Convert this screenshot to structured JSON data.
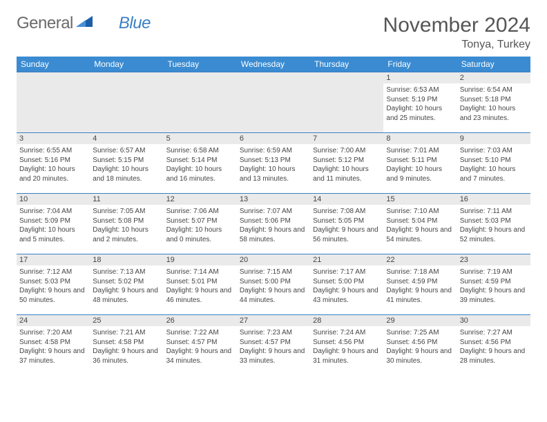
{
  "logo": {
    "text1": "General",
    "text2": "Blue"
  },
  "title": "November 2024",
  "location": "Tonya, Turkey",
  "colors": {
    "header_bg": "#3a8bd1",
    "header_text": "#ffffff",
    "border": "#3a7fc4",
    "daynum_bg": "#eaeaea",
    "text": "#444444",
    "logo_gray": "#6a6a6a",
    "logo_blue": "#3a7fc4"
  },
  "columns": [
    "Sunday",
    "Monday",
    "Tuesday",
    "Wednesday",
    "Thursday",
    "Friday",
    "Saturday"
  ],
  "weeks": [
    [
      null,
      null,
      null,
      null,
      null,
      {
        "n": "1",
        "sunrise": "6:53 AM",
        "sunset": "5:19 PM",
        "daylight": "10 hours and 25 minutes."
      },
      {
        "n": "2",
        "sunrise": "6:54 AM",
        "sunset": "5:18 PM",
        "daylight": "10 hours and 23 minutes."
      }
    ],
    [
      {
        "n": "3",
        "sunrise": "6:55 AM",
        "sunset": "5:16 PM",
        "daylight": "10 hours and 20 minutes."
      },
      {
        "n": "4",
        "sunrise": "6:57 AM",
        "sunset": "5:15 PM",
        "daylight": "10 hours and 18 minutes."
      },
      {
        "n": "5",
        "sunrise": "6:58 AM",
        "sunset": "5:14 PM",
        "daylight": "10 hours and 16 minutes."
      },
      {
        "n": "6",
        "sunrise": "6:59 AM",
        "sunset": "5:13 PM",
        "daylight": "10 hours and 13 minutes."
      },
      {
        "n": "7",
        "sunrise": "7:00 AM",
        "sunset": "5:12 PM",
        "daylight": "10 hours and 11 minutes."
      },
      {
        "n": "8",
        "sunrise": "7:01 AM",
        "sunset": "5:11 PM",
        "daylight": "10 hours and 9 minutes."
      },
      {
        "n": "9",
        "sunrise": "7:03 AM",
        "sunset": "5:10 PM",
        "daylight": "10 hours and 7 minutes."
      }
    ],
    [
      {
        "n": "10",
        "sunrise": "7:04 AM",
        "sunset": "5:09 PM",
        "daylight": "10 hours and 5 minutes."
      },
      {
        "n": "11",
        "sunrise": "7:05 AM",
        "sunset": "5:08 PM",
        "daylight": "10 hours and 2 minutes."
      },
      {
        "n": "12",
        "sunrise": "7:06 AM",
        "sunset": "5:07 PM",
        "daylight": "10 hours and 0 minutes."
      },
      {
        "n": "13",
        "sunrise": "7:07 AM",
        "sunset": "5:06 PM",
        "daylight": "9 hours and 58 minutes."
      },
      {
        "n": "14",
        "sunrise": "7:08 AM",
        "sunset": "5:05 PM",
        "daylight": "9 hours and 56 minutes."
      },
      {
        "n": "15",
        "sunrise": "7:10 AM",
        "sunset": "5:04 PM",
        "daylight": "9 hours and 54 minutes."
      },
      {
        "n": "16",
        "sunrise": "7:11 AM",
        "sunset": "5:03 PM",
        "daylight": "9 hours and 52 minutes."
      }
    ],
    [
      {
        "n": "17",
        "sunrise": "7:12 AM",
        "sunset": "5:03 PM",
        "daylight": "9 hours and 50 minutes."
      },
      {
        "n": "18",
        "sunrise": "7:13 AM",
        "sunset": "5:02 PM",
        "daylight": "9 hours and 48 minutes."
      },
      {
        "n": "19",
        "sunrise": "7:14 AM",
        "sunset": "5:01 PM",
        "daylight": "9 hours and 46 minutes."
      },
      {
        "n": "20",
        "sunrise": "7:15 AM",
        "sunset": "5:00 PM",
        "daylight": "9 hours and 44 minutes."
      },
      {
        "n": "21",
        "sunrise": "7:17 AM",
        "sunset": "5:00 PM",
        "daylight": "9 hours and 43 minutes."
      },
      {
        "n": "22",
        "sunrise": "7:18 AM",
        "sunset": "4:59 PM",
        "daylight": "9 hours and 41 minutes."
      },
      {
        "n": "23",
        "sunrise": "7:19 AM",
        "sunset": "4:59 PM",
        "daylight": "9 hours and 39 minutes."
      }
    ],
    [
      {
        "n": "24",
        "sunrise": "7:20 AM",
        "sunset": "4:58 PM",
        "daylight": "9 hours and 37 minutes."
      },
      {
        "n": "25",
        "sunrise": "7:21 AM",
        "sunset": "4:58 PM",
        "daylight": "9 hours and 36 minutes."
      },
      {
        "n": "26",
        "sunrise": "7:22 AM",
        "sunset": "4:57 PM",
        "daylight": "9 hours and 34 minutes."
      },
      {
        "n": "27",
        "sunrise": "7:23 AM",
        "sunset": "4:57 PM",
        "daylight": "9 hours and 33 minutes."
      },
      {
        "n": "28",
        "sunrise": "7:24 AM",
        "sunset": "4:56 PM",
        "daylight": "9 hours and 31 minutes."
      },
      {
        "n": "29",
        "sunrise": "7:25 AM",
        "sunset": "4:56 PM",
        "daylight": "9 hours and 30 minutes."
      },
      {
        "n": "30",
        "sunrise": "7:27 AM",
        "sunset": "4:56 PM",
        "daylight": "9 hours and 28 minutes."
      }
    ]
  ],
  "labels": {
    "sunrise": "Sunrise:",
    "sunset": "Sunset:",
    "daylight": "Daylight:"
  }
}
